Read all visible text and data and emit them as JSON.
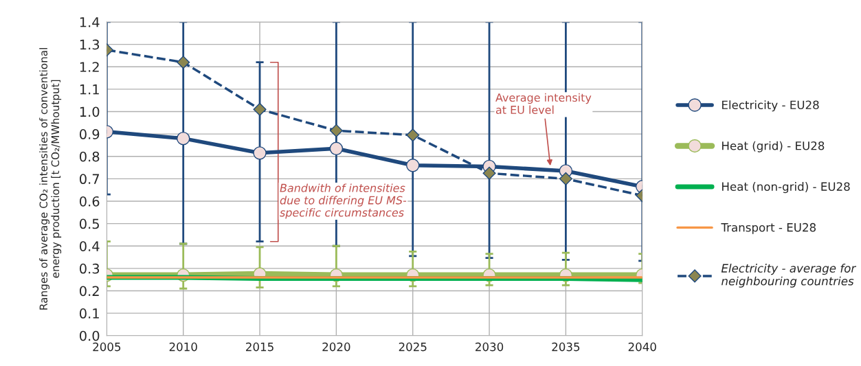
{
  "chart_data": {
    "type": "line",
    "ylabel": "Ranges of average CO₂ intensities of conventional\nenergy production [t CO₂/MWhoutput]",
    "x": [
      2005,
      2010,
      2015,
      2020,
      2025,
      2030,
      2035,
      2040
    ],
    "xlim": [
      2005,
      2040
    ],
    "xticks": [
      2005,
      2010,
      2015,
      2020,
      2025,
      2030,
      2035,
      2040
    ],
    "ylim": [
      0,
      1.4
    ],
    "yticks": [
      {
        "value": 0,
        "label": "0.0"
      },
      0.1,
      0.2,
      0.3,
      0.4,
      0.5,
      0.6,
      0.7,
      0.8,
      0.9,
      {
        "value": 1,
        "label": "1.0"
      },
      1.1,
      1.2,
      1.3,
      1.4
    ],
    "grid": true,
    "legend": "right",
    "series": [
      {
        "name": "Electricity - EU28",
        "color": "#1f497d",
        "marker": "circle",
        "line_style": "solid",
        "values": [
          0.91,
          0.88,
          0.815,
          0.835,
          0.76,
          0.755,
          0.735,
          0.665
        ],
        "errors": [
          [
            0.63,
            1.4
          ],
          [
            0.41,
            1.4
          ],
          [
            0.42,
            1.22
          ],
          [
            0.4,
            1.4
          ],
          [
            0.355,
            1.4
          ],
          [
            0.347,
            1.4
          ],
          [
            0.338,
            1.4
          ],
          [
            0.334,
            1.4
          ]
        ]
      },
      {
        "name": "Heat (grid) - EU28",
        "color": "#9bbb59",
        "marker": "circle",
        "line_style": "solid",
        "values": [
          0.27,
          0.27,
          0.275,
          0.27,
          0.27,
          0.27,
          0.27,
          0.27
        ],
        "errors": [
          [
            0.22,
            0.42
          ],
          [
            0.21,
            0.41
          ],
          [
            0.215,
            0.395
          ],
          [
            0.22,
            0.4
          ],
          [
            0.22,
            0.375
          ],
          [
            0.225,
            0.365
          ],
          [
            0.225,
            0.37
          ],
          [
            0.235,
            0.365
          ]
        ]
      },
      {
        "name": "Heat (non-grid) - EU28",
        "color": "#00b050",
        "marker": "none",
        "line_style": "solid",
        "values": [
          0.26,
          0.26,
          0.255,
          0.255,
          0.255,
          0.255,
          0.255,
          0.25
        ]
      },
      {
        "name": "Transport - EU28",
        "color": "#f79646",
        "marker": "none",
        "line_style": "solid",
        "values": [
          0.26,
          0.26,
          0.26,
          0.26,
          0.26,
          0.26,
          0.26,
          0.26
        ]
      },
      {
        "name": "Electricity - average for\nneighbouring countries",
        "color": "#1f497d",
        "marker": "diamond",
        "line_style": "dashed",
        "values": [
          1.275,
          1.22,
          1.01,
          0.915,
          0.895,
          0.725,
          0.7,
          0.625
        ]
      }
    ],
    "annotations": [
      {
        "text": "Bandwith of intensities\ndue to differing EU MS-\nspecific circumstances",
        "x": 2015,
        "y": 0.42
      },
      {
        "text": "Average intensity\nat EU level",
        "x": 2034,
        "y": 0.75
      }
    ]
  }
}
